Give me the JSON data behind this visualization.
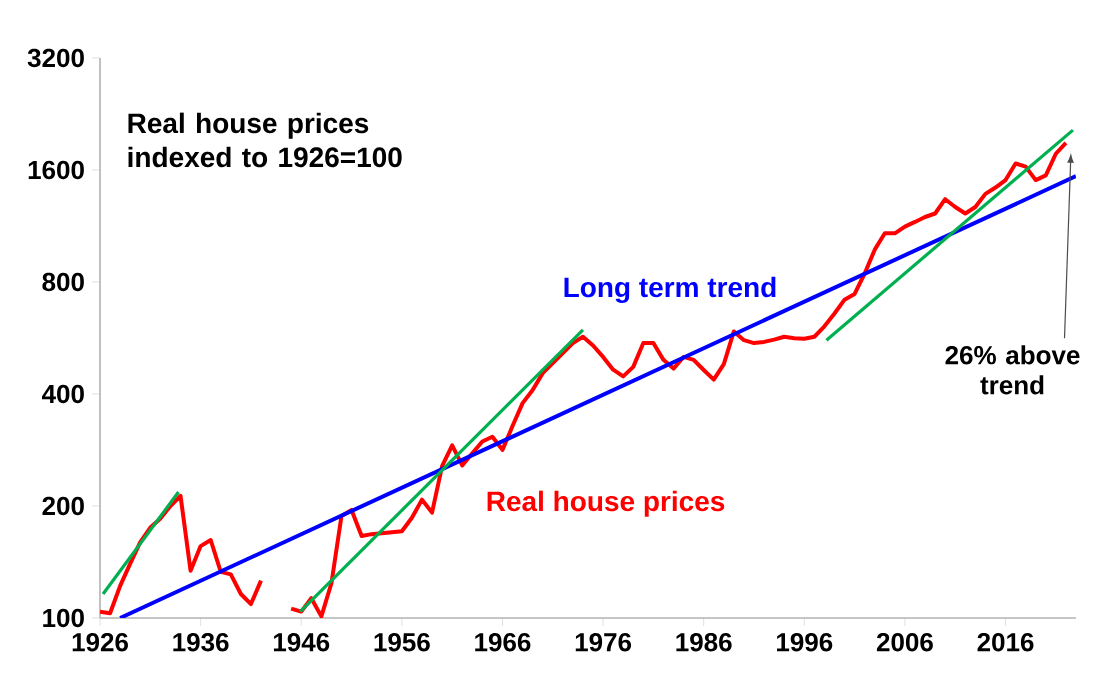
{
  "chart_data": {
    "type": "line",
    "annotations": [
      "Real house prices indexed to 1926=100",
      {
        "text": "26% above trend",
        "x": 2022.5,
        "y": 1780
      }
    ],
    "xlim": [
      1926,
      2023
    ],
    "xticks": [
      1926,
      1936,
      1946,
      1956,
      1966,
      1976,
      1986,
      1996,
      2006,
      2016
    ],
    "ylim": [
      100,
      3200
    ],
    "yticks": [
      100,
      200,
      400,
      800,
      1600,
      3200
    ],
    "log": "y",
    "grid": false,
    "series": [
      {
        "name": "Real house prices",
        "color": "#ff0000",
        "x": [
          1926,
          1927,
          1928,
          1929,
          1930,
          1931,
          1932,
          1933,
          1934,
          1935,
          1936,
          1937,
          1938,
          1939,
          1940,
          1941,
          1942,
          1943,
          1944,
          1945,
          1946,
          1947,
          1948,
          1949,
          1950,
          1951,
          1952,
          1953,
          1954,
          1955,
          1956,
          1957,
          1958,
          1959,
          1960,
          1961,
          1962,
          1963,
          1964,
          1965,
          1966,
          1967,
          1968,
          1969,
          1970,
          1971,
          1972,
          1973,
          1974,
          1975,
          1976,
          1977,
          1978,
          1979,
          1980,
          1981,
          1982,
          1983,
          1984,
          1985,
          1986,
          1987,
          1988,
          1989,
          1990,
          1991,
          1992,
          1993,
          1994,
          1995,
          1996,
          1997,
          1998,
          1999,
          2000,
          2001,
          2002,
          2003,
          2004,
          2005,
          2006,
          2007,
          2008,
          2009,
          2010,
          2011,
          2012,
          2013,
          2014,
          2015,
          2016,
          2017,
          2018,
          2019,
          2020,
          2021,
          2022
        ],
        "values": [
          104,
          103,
          122,
          140,
          160,
          175,
          185,
          200,
          213,
          134,
          156,
          162,
          133,
          131,
          116,
          109,
          126,
          null,
          null,
          106,
          104,
          113,
          101,
          124,
          188,
          195,
          166,
          168,
          169,
          170,
          171,
          186,
          208,
          192,
          256,
          291,
          257,
          277,
          298,
          307,
          283,
          328,
          378,
          410,
          455,
          484,
          515,
          548,
          570,
          540,
          503,
          465,
          446,
          473,
          548,
          548,
          494,
          468,
          503,
          494,
          464,
          437,
          481,
          589,
          558,
          548,
          552,
          560,
          570,
          565,
          563,
          570,
          608,
          658,
          717,
          743,
          843,
          977,
          1081,
          1081,
          1127,
          1160,
          1196,
          1222,
          1335,
          1272,
          1222,
          1272,
          1380,
          1435,
          1503,
          1666,
          1634,
          1503,
          1547,
          1769,
          1893
        ]
      },
      {
        "name": "Long term trend",
        "color": "#0000ff",
        "x": [
          1928,
          2023
        ],
        "values": [
          100,
          1540
        ]
      },
      {
        "color": "#00b050",
        "x": [
          1926.3,
          1933.8
        ],
        "values": [
          116,
          218
        ]
      },
      {
        "color": "#00b050",
        "x": [
          1945.9,
          1974.0
        ],
        "values": [
          104,
          595
        ]
      },
      {
        "color": "#00b050",
        "x": [
          1998.2,
          2022.7
        ],
        "values": [
          558,
          2047
        ]
      }
    ]
  }
}
